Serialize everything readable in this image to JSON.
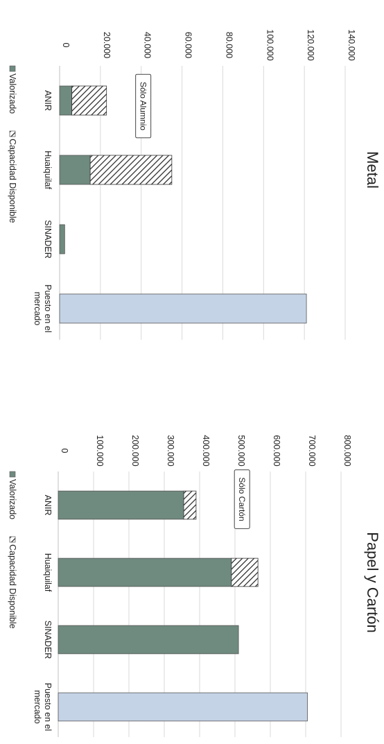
{
  "colors": {
    "valorizado": "#6f8a7f",
    "capacidad": "#ffffff",
    "mercado": "#c5d3e6",
    "grid": "#d9d9d9",
    "text": "#222222"
  },
  "chart_data": [
    {
      "type": "bar",
      "orientation": "rotated-90",
      "title": "Metal",
      "categories": [
        "ANIR",
        "Huaiquilaf",
        "SINADER",
        "Puesto en el mercado"
      ],
      "category_lines": [
        [
          "ANIR"
        ],
        [
          "Huaiquilaf"
        ],
        [
          "SINADER"
        ],
        [
          "Puesto en el",
          "mercado"
        ]
      ],
      "stacked": true,
      "ylim": [
        0,
        140000
      ],
      "yticks": [
        0,
        20000,
        40000,
        60000,
        80000,
        100000,
        120000,
        140000
      ],
      "ytick_labels": [
        "0",
        "20.000",
        "40.000",
        "60.000",
        "80.000",
        "100.000",
        "120.000",
        "140.000"
      ],
      "series": [
        {
          "name": "Valorizado",
          "values": [
            6000,
            15000,
            2500,
            121000
          ]
        },
        {
          "name": "Capacidad Disponible",
          "values": [
            17000,
            40000,
            0,
            0
          ]
        }
      ],
      "legend": [
        "Valorizado",
        "Capacidad Disponible"
      ],
      "legend_position": "bottom",
      "annotation": "Sólo Alumnio"
    },
    {
      "type": "bar",
      "orientation": "rotated-90",
      "title": "Papel y Cartón",
      "categories": [
        "ANIR",
        "Huaiquilaf",
        "SINADER",
        "Puesto en el mercado"
      ],
      "category_lines": [
        [
          "ANIR"
        ],
        [
          "Huaiquilaf"
        ],
        [
          "SINADER"
        ],
        [
          "Puesto en el",
          "mercado"
        ]
      ],
      "stacked": true,
      "ylim": [
        0,
        800000
      ],
      "yticks": [
        0,
        100000,
        200000,
        300000,
        400000,
        500000,
        600000,
        700000,
        800000
      ],
      "ytick_labels": [
        "0",
        "100.000",
        "200.000",
        "300.000",
        "400.000",
        "500.000",
        "600.000",
        "700.000",
        "800.000"
      ],
      "series": [
        {
          "name": "Valorizado",
          "values": [
            355000,
            490000,
            510000,
            705000
          ]
        },
        {
          "name": "Capacidad Disponible",
          "values": [
            35000,
            75000,
            0,
            0
          ]
        }
      ],
      "legend": [
        "Valorizado",
        "Capacidad Disponible"
      ],
      "legend_position": "bottom",
      "annotation": "Sólo Cartón"
    }
  ]
}
